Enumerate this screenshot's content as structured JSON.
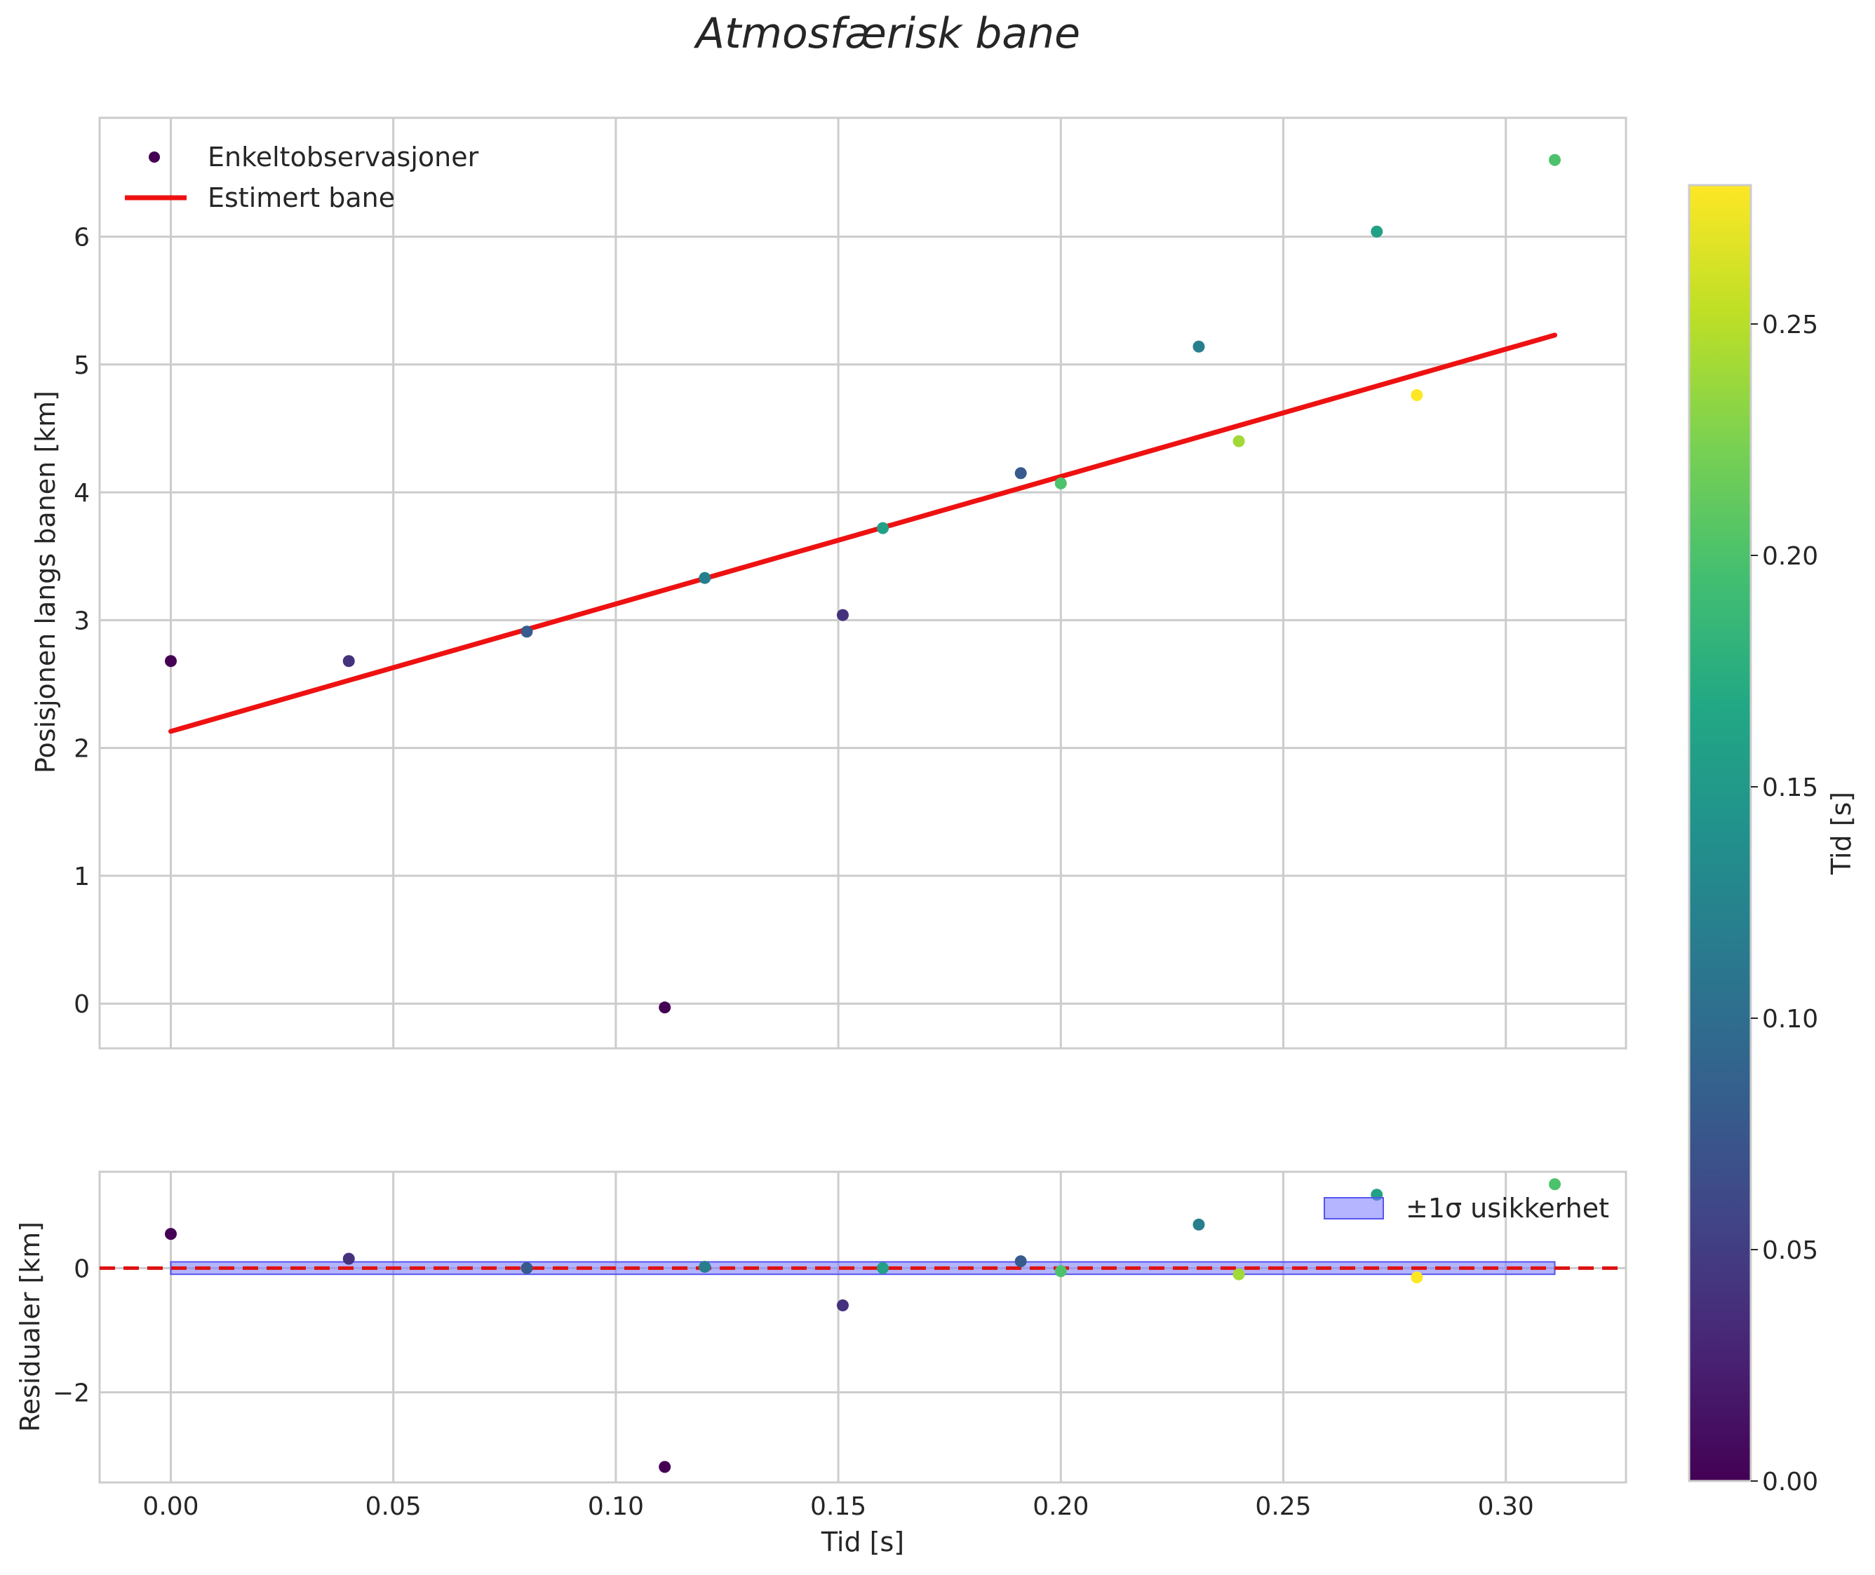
{
  "chart_data": {
    "type": "scatter",
    "title": "Atmosfærisk bane",
    "colors": {
      "fit_line": "#ee1111",
      "band": "#7777ff",
      "zero_line": "#dd1111",
      "grid": "#cccccc",
      "text": "#262626"
    },
    "colorbar": {
      "label": "Tid [s]",
      "colormap": "viridis",
      "range": [
        0.0,
        0.28
      ],
      "ticks": [
        0.0,
        0.05,
        0.1,
        0.15,
        0.2,
        0.25
      ],
      "tick_labels": [
        "0.00",
        "0.05",
        "0.10",
        "0.15",
        "0.20",
        "0.25"
      ]
    },
    "x": [
      0.0,
      0.04,
      0.08,
      0.111,
      0.12,
      0.151,
      0.16,
      0.191,
      0.2,
      0.231,
      0.24,
      0.271,
      0.28,
      0.311
    ],
    "point_color_values": [
      0.0,
      0.04,
      0.08,
      0.0,
      0.12,
      0.04,
      0.16,
      0.08,
      0.2,
      0.12,
      0.24,
      0.16,
      0.28,
      0.2
    ],
    "panels": [
      {
        "name": "position",
        "ylabel": "Posisjonen langs banen [km]",
        "xlim": [
          -0.016,
          0.327
        ],
        "ylim": [
          -0.35,
          6.93
        ],
        "yticks": [
          0,
          1,
          2,
          3,
          4,
          5,
          6
        ],
        "ytick_labels": [
          "0",
          "1",
          "2",
          "3",
          "4",
          "5",
          "6"
        ],
        "legend": {
          "location": "upper left",
          "entries": [
            "Enkeltobservasjoner",
            "Estimert bane"
          ]
        },
        "series": [
          {
            "name": "Enkeltobservasjoner",
            "kind": "scatter",
            "y": [
              2.68,
              2.68,
              2.91,
              -0.03,
              3.33,
              3.04,
              3.72,
              4.15,
              4.07,
              5.14,
              4.4,
              6.04,
              4.76,
              6.6
            ]
          },
          {
            "name": "Estimert bane",
            "kind": "line",
            "x": [
              0.0,
              0.311
            ],
            "y": [
              2.13,
              5.23
            ]
          }
        ]
      },
      {
        "name": "residuals",
        "ylabel": "Residualer [km]",
        "xlabel": "Tid [s]",
        "xlim": [
          -0.016,
          0.327
        ],
        "ylim": [
          -3.45,
          1.55
        ],
        "yticks": [
          -2,
          0
        ],
        "ytick_labels": [
          "−2",
          "0"
        ],
        "xticks": [
          0.0,
          0.05,
          0.1,
          0.15,
          0.2,
          0.25,
          0.3
        ],
        "xtick_labels": [
          "0.00",
          "0.05",
          "0.10",
          "0.15",
          "0.20",
          "0.25",
          "0.30"
        ],
        "legend": {
          "location": "upper right",
          "entries": [
            "±1σ usikkerhet"
          ]
        },
        "series": [
          {
            "name": "Residualer",
            "kind": "scatter",
            "y": [
              0.55,
              0.15,
              0.0,
              -3.2,
              0.02,
              -0.6,
              0.0,
              0.11,
              -0.05,
              0.7,
              -0.1,
              1.18,
              -0.15,
              1.35
            ]
          },
          {
            "name": "±1σ usikkerhet",
            "kind": "band",
            "x": [
              0.0,
              0.311
            ],
            "upper": [
              0.1,
              0.1
            ],
            "lower": [
              -0.1,
              -0.1
            ]
          },
          {
            "name": "Nullinje",
            "kind": "hline",
            "y": 0
          }
        ]
      }
    ]
  }
}
